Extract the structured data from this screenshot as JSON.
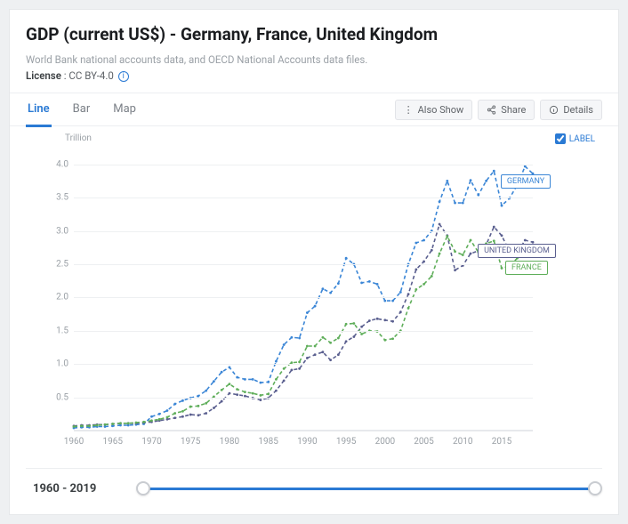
{
  "title": "GDP (current US$) - Germany, France, United Kingdom",
  "subtitle": "World Bank national accounts data, and OECD National Accounts data files.",
  "license_label": "License",
  "license_value": "CC BY-4.0",
  "tabs": {
    "line": "Line",
    "bar": "Bar",
    "map": "Map",
    "active": "line"
  },
  "actions": {
    "also_show": "Also Show",
    "share": "Share",
    "details": "Details"
  },
  "legend_toggle": "LABEL",
  "chart": {
    "type": "line",
    "y_unit": "Trillion",
    "y_ticks": [
      0.5,
      1.0,
      1.5,
      2.0,
      2.5,
      3.0,
      3.5,
      4.0
    ],
    "y_lim": [
      0,
      4.25
    ],
    "x_ticks": [
      1960,
      1965,
      1970,
      1975,
      1980,
      1985,
      1990,
      1995,
      2000,
      2005,
      2010,
      2015
    ],
    "x_lim": [
      1960,
      2019
    ],
    "grid_color": "#eef0f2",
    "axis_text_color": "#9aa0a6",
    "line_style": "dashed",
    "line_width": 1.6,
    "marker_radius": 1.4,
    "font_size_ticks": 10,
    "series": [
      {
        "name": "GERMANY",
        "color": "#3b86d6",
        "label_pos_frac": [
          0.93,
          0.095
        ],
        "data": [
          [
            1960,
            0.04
          ],
          [
            1961,
            0.05
          ],
          [
            1962,
            0.05
          ],
          [
            1963,
            0.06
          ],
          [
            1964,
            0.06
          ],
          [
            1965,
            0.07
          ],
          [
            1966,
            0.08
          ],
          [
            1967,
            0.08
          ],
          [
            1968,
            0.09
          ],
          [
            1969,
            0.1
          ],
          [
            1970,
            0.21
          ],
          [
            1971,
            0.25
          ],
          [
            1972,
            0.3
          ],
          [
            1973,
            0.4
          ],
          [
            1974,
            0.45
          ],
          [
            1975,
            0.49
          ],
          [
            1976,
            0.52
          ],
          [
            1977,
            0.6
          ],
          [
            1978,
            0.74
          ],
          [
            1979,
            0.88
          ],
          [
            1980,
            0.95
          ],
          [
            1981,
            0.8
          ],
          [
            1982,
            0.77
          ],
          [
            1983,
            0.77
          ],
          [
            1984,
            0.72
          ],
          [
            1985,
            0.73
          ],
          [
            1986,
            1.04
          ],
          [
            1987,
            1.29
          ],
          [
            1988,
            1.4
          ],
          [
            1989,
            1.39
          ],
          [
            1990,
            1.77
          ],
          [
            1991,
            1.87
          ],
          [
            1992,
            2.13
          ],
          [
            1993,
            2.07
          ],
          [
            1994,
            2.21
          ],
          [
            1995,
            2.59
          ],
          [
            1996,
            2.5
          ],
          [
            1997,
            2.22
          ],
          [
            1998,
            2.24
          ],
          [
            1999,
            2.2
          ],
          [
            2000,
            1.95
          ],
          [
            2001,
            1.95
          ],
          [
            2002,
            2.08
          ],
          [
            2003,
            2.5
          ],
          [
            2004,
            2.82
          ],
          [
            2005,
            2.86
          ],
          [
            2006,
            3.0
          ],
          [
            2007,
            3.44
          ],
          [
            2008,
            3.75
          ],
          [
            2009,
            3.42
          ],
          [
            2010,
            3.42
          ],
          [
            2011,
            3.76
          ],
          [
            2012,
            3.54
          ],
          [
            2013,
            3.75
          ],
          [
            2014,
            3.9
          ],
          [
            2015,
            3.38
          ],
          [
            2016,
            3.49
          ],
          [
            2017,
            3.69
          ],
          [
            2018,
            3.97
          ],
          [
            2019,
            3.86
          ]
        ]
      },
      {
        "name": "UNITED KINGDOM",
        "color": "#5a5f8f",
        "label_pos_frac": [
          0.88,
          0.34
        ],
        "data": [
          [
            1960,
            0.07
          ],
          [
            1961,
            0.08
          ],
          [
            1962,
            0.08
          ],
          [
            1963,
            0.09
          ],
          [
            1964,
            0.09
          ],
          [
            1965,
            0.1
          ],
          [
            1966,
            0.11
          ],
          [
            1967,
            0.11
          ],
          [
            1968,
            0.11
          ],
          [
            1969,
            0.12
          ],
          [
            1970,
            0.13
          ],
          [
            1971,
            0.15
          ],
          [
            1972,
            0.17
          ],
          [
            1973,
            0.19
          ],
          [
            1974,
            0.21
          ],
          [
            1975,
            0.24
          ],
          [
            1976,
            0.23
          ],
          [
            1977,
            0.26
          ],
          [
            1978,
            0.34
          ],
          [
            1979,
            0.44
          ],
          [
            1980,
            0.56
          ],
          [
            1981,
            0.54
          ],
          [
            1982,
            0.52
          ],
          [
            1983,
            0.49
          ],
          [
            1984,
            0.46
          ],
          [
            1985,
            0.49
          ],
          [
            1986,
            0.6
          ],
          [
            1987,
            0.75
          ],
          [
            1988,
            0.91
          ],
          [
            1989,
            0.93
          ],
          [
            1990,
            1.09
          ],
          [
            1991,
            1.14
          ],
          [
            1992,
            1.18
          ],
          [
            1993,
            1.06
          ],
          [
            1994,
            1.14
          ],
          [
            1995,
            1.34
          ],
          [
            1996,
            1.41
          ],
          [
            1997,
            1.56
          ],
          [
            1998,
            1.65
          ],
          [
            1999,
            1.68
          ],
          [
            2000,
            1.66
          ],
          [
            2001,
            1.64
          ],
          [
            2002,
            1.78
          ],
          [
            2003,
            2.05
          ],
          [
            2004,
            2.42
          ],
          [
            2005,
            2.54
          ],
          [
            2006,
            2.71
          ],
          [
            2007,
            3.1
          ],
          [
            2008,
            2.93
          ],
          [
            2009,
            2.41
          ],
          [
            2010,
            2.48
          ],
          [
            2011,
            2.66
          ],
          [
            2012,
            2.7
          ],
          [
            2013,
            2.79
          ],
          [
            2014,
            3.06
          ],
          [
            2015,
            2.93
          ],
          [
            2016,
            2.69
          ],
          [
            2017,
            2.67
          ],
          [
            2018,
            2.86
          ],
          [
            2019,
            2.83
          ]
        ]
      },
      {
        "name": "FRANCE",
        "color": "#5fae5a",
        "label_pos_frac": [
          0.94,
          0.4
        ],
        "data": [
          [
            1960,
            0.06
          ],
          [
            1961,
            0.07
          ],
          [
            1962,
            0.07
          ],
          [
            1963,
            0.08
          ],
          [
            1964,
            0.09
          ],
          [
            1965,
            0.1
          ],
          [
            1966,
            0.11
          ],
          [
            1967,
            0.11
          ],
          [
            1968,
            0.12
          ],
          [
            1969,
            0.13
          ],
          [
            1970,
            0.15
          ],
          [
            1971,
            0.17
          ],
          [
            1972,
            0.2
          ],
          [
            1973,
            0.26
          ],
          [
            1974,
            0.29
          ],
          [
            1975,
            0.36
          ],
          [
            1976,
            0.37
          ],
          [
            1977,
            0.41
          ],
          [
            1978,
            0.51
          ],
          [
            1979,
            0.61
          ],
          [
            1980,
            0.7
          ],
          [
            1981,
            0.62
          ],
          [
            1982,
            0.58
          ],
          [
            1983,
            0.56
          ],
          [
            1984,
            0.53
          ],
          [
            1985,
            0.55
          ],
          [
            1986,
            0.77
          ],
          [
            1987,
            0.93
          ],
          [
            1988,
            1.02
          ],
          [
            1989,
            1.03
          ],
          [
            1990,
            1.27
          ],
          [
            1991,
            1.27
          ],
          [
            1992,
            1.4
          ],
          [
            1993,
            1.32
          ],
          [
            1994,
            1.39
          ],
          [
            1995,
            1.6
          ],
          [
            1996,
            1.61
          ],
          [
            1997,
            1.45
          ],
          [
            1998,
            1.5
          ],
          [
            1999,
            1.49
          ],
          [
            2000,
            1.36
          ],
          [
            2001,
            1.38
          ],
          [
            2002,
            1.5
          ],
          [
            2003,
            1.84
          ],
          [
            2004,
            2.12
          ],
          [
            2005,
            2.2
          ],
          [
            2006,
            2.32
          ],
          [
            2007,
            2.66
          ],
          [
            2008,
            2.92
          ],
          [
            2009,
            2.69
          ],
          [
            2010,
            2.64
          ],
          [
            2011,
            2.86
          ],
          [
            2012,
            2.68
          ],
          [
            2013,
            2.81
          ],
          [
            2014,
            2.85
          ],
          [
            2015,
            2.44
          ],
          [
            2016,
            2.47
          ],
          [
            2017,
            2.59
          ],
          [
            2018,
            2.79
          ],
          [
            2019,
            2.72
          ]
        ]
      }
    ]
  },
  "time_range": {
    "start": 1960,
    "end": 2019
  }
}
